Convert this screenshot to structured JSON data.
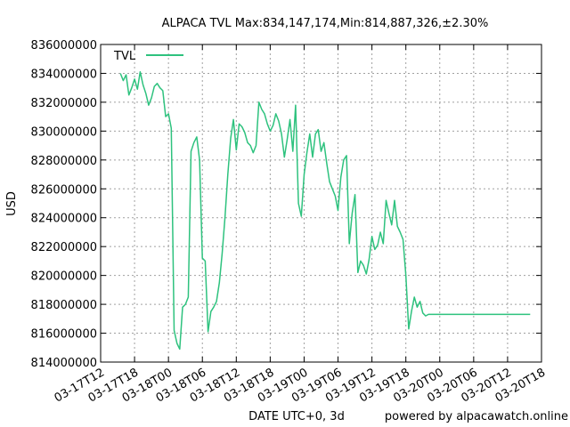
{
  "chart_data": {
    "type": "line",
    "title": "ALPACA TVL Max:834,147,174,Min:814,887,326,±2.30%",
    "xlabel": "DATE UTC+0, 3d",
    "ylabel": "USD",
    "credit": "powered by alpacawatch.online",
    "legend_position": "top-left",
    "grid": true,
    "ylim": [
      814000000,
      836000000
    ],
    "xlim": [
      0,
      78
    ],
    "y_ticks": [
      814000000,
      816000000,
      818000000,
      820000000,
      822000000,
      824000000,
      826000000,
      828000000,
      830000000,
      832000000,
      834000000,
      836000000
    ],
    "x_ticks": [
      {
        "label": "03-17T12",
        "x": 0
      },
      {
        "label": "03-17T18",
        "x": 6
      },
      {
        "label": "03-18T00",
        "x": 12
      },
      {
        "label": "03-18T06",
        "x": 18
      },
      {
        "label": "03-18T12",
        "x": 24
      },
      {
        "label": "03-18T18",
        "x": 30
      },
      {
        "label": "03-19T00",
        "x": 36
      },
      {
        "label": "03-19T06",
        "x": 42
      },
      {
        "label": "03-19T12",
        "x": 48
      },
      {
        "label": "03-19T18",
        "x": 54
      },
      {
        "label": "03-20T00",
        "x": 60
      },
      {
        "label": "03-20T06",
        "x": 66
      },
      {
        "label": "03-20T12",
        "x": 72
      },
      {
        "label": "03-20T18",
        "x": 78
      }
    ],
    "series": [
      {
        "name": "TVL",
        "color": "#2ec27e",
        "x": [
          3.5,
          4,
          4.5,
          5,
          5.5,
          6,
          6.5,
          7,
          7.5,
          8,
          8.5,
          9,
          9.5,
          10,
          10.5,
          11,
          11.5,
          12,
          12.5,
          13,
          13.5,
          14,
          14.5,
          15,
          15.5,
          16,
          16.5,
          17,
          17.5,
          18,
          18.5,
          19,
          19.5,
          20,
          20.5,
          21,
          21.5,
          22,
          22.5,
          23,
          23.5,
          24,
          24.5,
          25,
          25.5,
          26,
          26.5,
          27,
          27.5,
          28,
          28.5,
          29,
          29.5,
          30,
          30.5,
          31,
          31.5,
          32,
          32.5,
          33,
          33.5,
          34,
          34.5,
          35,
          35.5,
          36,
          36.5,
          37,
          37.5,
          38,
          38.5,
          39,
          39.5,
          40,
          40.5,
          41,
          41.5,
          42,
          42.5,
          43,
          43.5,
          44,
          44.5,
          45,
          45.5,
          46,
          46.5,
          47,
          47.5,
          48,
          48.5,
          49,
          49.5,
          50,
          50.5,
          51,
          51.5,
          52,
          52.5,
          53,
          53.5,
          54,
          54.5,
          55,
          55.5,
          56,
          56.5,
          57,
          57.5,
          58,
          58.5,
          59,
          59.5,
          60,
          60.5,
          61,
          61.5,
          62,
          62.5,
          63,
          63.5,
          64,
          64.5,
          65,
          65.5,
          66,
          66.5,
          67,
          67.5,
          68,
          68.5,
          69,
          69.5,
          70,
          70.5,
          71,
          71.5,
          72,
          72.5,
          73,
          73.5,
          74,
          74.5,
          75,
          75.5,
          76
        ],
        "values": [
          834000000,
          833500000,
          833900000,
          832500000,
          833000000,
          833600000,
          832900000,
          834100000,
          833200000,
          832600000,
          831800000,
          832300000,
          833100000,
          833300000,
          833000000,
          832800000,
          831000000,
          831200000,
          830200000,
          816200000,
          815300000,
          814900000,
          817800000,
          818000000,
          818500000,
          828600000,
          829200000,
          829600000,
          828000000,
          821200000,
          821000000,
          816100000,
          817500000,
          817800000,
          818200000,
          819500000,
          821500000,
          824000000,
          827000000,
          829500000,
          830800000,
          828700000,
          830500000,
          830300000,
          829900000,
          829200000,
          829000000,
          828500000,
          829000000,
          832000000,
          831500000,
          831200000,
          830500000,
          830000000,
          830400000,
          831200000,
          830700000,
          829800000,
          828200000,
          829400000,
          830800000,
          828600000,
          831800000,
          825000000,
          824100000,
          827000000,
          828500000,
          829800000,
          828200000,
          829800000,
          830100000,
          828600000,
          829200000,
          827800000,
          826500000,
          826000000,
          825500000,
          824500000,
          826800000,
          828000000,
          828300000,
          822200000,
          824300000,
          825600000,
          820200000,
          821000000,
          820700000,
          820100000,
          821100000,
          822700000,
          821800000,
          822100000,
          823000000,
          822200000,
          825200000,
          824300000,
          823500000,
          825200000,
          823400000,
          823000000,
          822500000,
          820000000,
          816300000,
          817500000,
          818500000,
          817800000,
          818200000,
          817400000,
          817200000,
          817300000,
          817300000,
          817300000,
          817300000,
          817300000,
          817300000,
          817300000,
          817300000,
          817300000,
          817300000,
          817300000,
          817300000,
          817300000,
          817300000,
          817300000,
          817300000,
          817300000,
          817300000,
          817300000,
          817300000,
          817300000,
          817300000,
          817300000,
          817300000,
          817300000,
          817300000,
          817300000,
          817300000,
          817300000,
          817300000,
          817300000,
          817300000,
          817300000,
          817300000,
          817300000,
          817300000,
          817300000
        ]
      }
    ]
  }
}
